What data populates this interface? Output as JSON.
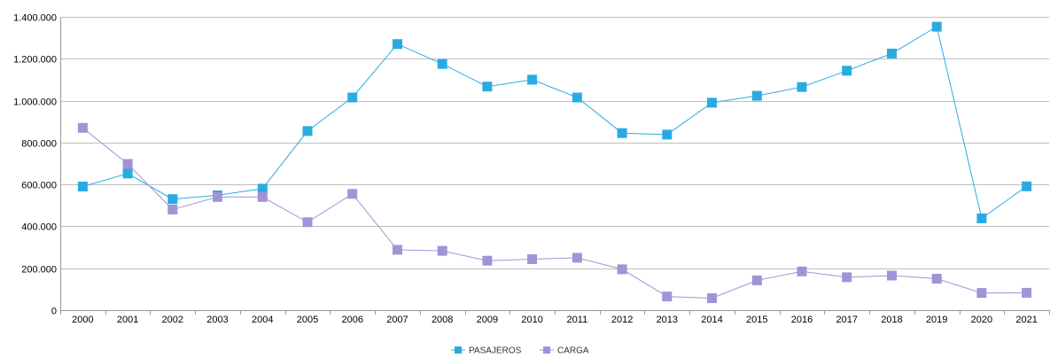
{
  "chart_data": {
    "type": "line",
    "title": "",
    "xlabel": "",
    "ylabel": "",
    "categories": [
      "2000",
      "2001",
      "2002",
      "2003",
      "2004",
      "2005",
      "2006",
      "2007",
      "2008",
      "2009",
      "2010",
      "2011",
      "2012",
      "2013",
      "2014",
      "2015",
      "2016",
      "2017",
      "2018",
      "2019",
      "2020",
      "2021"
    ],
    "ylim": [
      0,
      1400000
    ],
    "y_ticks": [
      0,
      200000,
      400000,
      600000,
      800000,
      1000000,
      1200000,
      1400000
    ],
    "y_tick_labels": [
      "0",
      "200.000",
      "400.000",
      "600.000",
      "800.000",
      "1.000.000",
      "1.200.000",
      "1.400.000"
    ],
    "grid": "horizontal",
    "legend_position": "bottom",
    "series": [
      {
        "name": "PASAJEROS",
        "color": "#29abe2",
        "marker": "square",
        "values": [
          590000,
          652000,
          530000,
          548000,
          580000,
          855000,
          1015000,
          1270000,
          1175000,
          1067000,
          1100000,
          1015000,
          845000,
          838000,
          990000,
          1023000,
          1065000,
          1143000,
          1225000,
          1353000,
          438000,
          591000
        ]
      },
      {
        "name": "CARGA",
        "color": "#a393d6",
        "marker": "square",
        "values": [
          870000,
          698000,
          480000,
          540000,
          540000,
          420000,
          555000,
          288000,
          283000,
          236000,
          243000,
          250000,
          195000,
          65000,
          57000,
          142000,
          185000,
          157000,
          165000,
          150000,
          82000,
          83000
        ]
      }
    ]
  }
}
